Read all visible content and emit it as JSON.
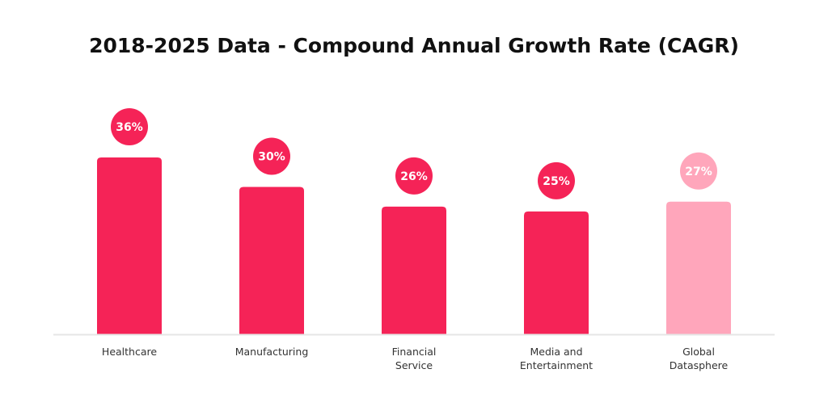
{
  "chart_data": {
    "type": "bar",
    "title": "2018-2025 Data - Compound Annual Growth Rate (CAGR)",
    "categories": [
      [
        "Healthcare"
      ],
      [
        "Manufacturing"
      ],
      [
        "Financial",
        "Service"
      ],
      [
        "Media and",
        "Entertainment"
      ],
      [
        "Global",
        "Datasphere"
      ]
    ],
    "values": [
      36,
      30,
      26,
      25,
      27
    ],
    "labels": [
      "36%",
      "30%",
      "26%",
      "25%",
      "27%"
    ],
    "ylim": [
      0,
      36
    ],
    "grid": false,
    "colors": [
      "#F52357",
      "#F52357",
      "#F52357",
      "#F52357",
      "#FFA6BB"
    ],
    "axis_color": "#E6E6E6"
  }
}
